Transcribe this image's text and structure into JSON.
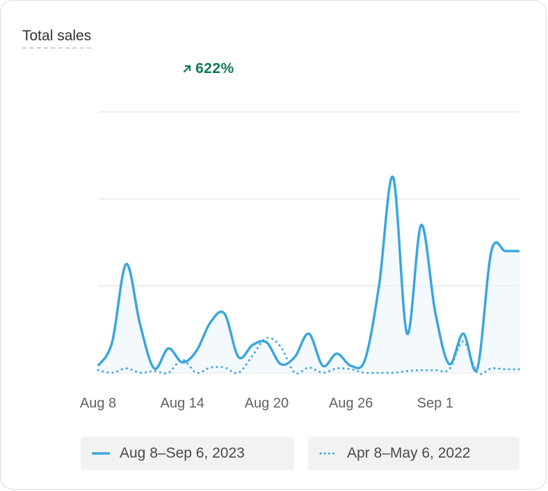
{
  "card": {
    "title": "Total sales"
  },
  "delta": {
    "text": "622%",
    "direction": "up",
    "color": "#0f7a55"
  },
  "colors": {
    "line": "#3aa6dd",
    "grid": "#e6e6e6",
    "fill": "#eef7fc"
  },
  "legend": [
    {
      "label": "Aug 8–Sep 6, 2023",
      "style": "solid"
    },
    {
      "label": "Apr 8–May 6, 2022",
      "style": "dotted"
    }
  ],
  "chart_data": {
    "type": "line",
    "x_ticks": [
      "Aug 8",
      "Aug 14",
      "Aug 20",
      "Aug 26",
      "Sep 1"
    ],
    "ylim": [
      0,
      3
    ],
    "y_gridlines": [
      0,
      1,
      2,
      3
    ],
    "y_tick_labels": "none",
    "grid": true,
    "legend_position": "bottom",
    "series": [
      {
        "name": "Aug 8–Sep 6, 2023",
        "style": "solid",
        "x": [
          0,
          1,
          2,
          3,
          4,
          5,
          6,
          7,
          8,
          9,
          10,
          11,
          12,
          13,
          14,
          15,
          16,
          17,
          18,
          19,
          20,
          21,
          22,
          23,
          24,
          25,
          26,
          27,
          28,
          29,
          30
        ],
        "values": [
          0.08,
          0.35,
          1.25,
          0.55,
          0.05,
          0.28,
          0.12,
          0.25,
          0.58,
          0.68,
          0.18,
          0.32,
          0.35,
          0.1,
          0.18,
          0.45,
          0.08,
          0.22,
          0.08,
          0.15,
          1.0,
          2.25,
          0.45,
          1.7,
          0.7,
          0.1,
          0.45,
          0.05,
          1.4,
          1.4,
          1.4
        ]
      },
      {
        "name": "Apr 8–May 6, 2022",
        "style": "dotted",
        "x": [
          0,
          1,
          2,
          3,
          4,
          5,
          6,
          7,
          8,
          9,
          10,
          11,
          12,
          13,
          14,
          15,
          16,
          17,
          18,
          19,
          20,
          21,
          22,
          23,
          24,
          25,
          26,
          27,
          28,
          29,
          30
        ],
        "values": [
          0.03,
          0.0,
          0.05,
          0.0,
          0.02,
          0.0,
          0.15,
          0.0,
          0.06,
          0.06,
          0.0,
          0.2,
          0.4,
          0.3,
          0.0,
          0.06,
          0.0,
          0.05,
          0.04,
          0.0,
          0.0,
          0.0,
          0.02,
          0.03,
          0.03,
          0.04,
          0.36,
          0.0,
          0.05,
          0.04,
          0.04
        ]
      }
    ]
  }
}
